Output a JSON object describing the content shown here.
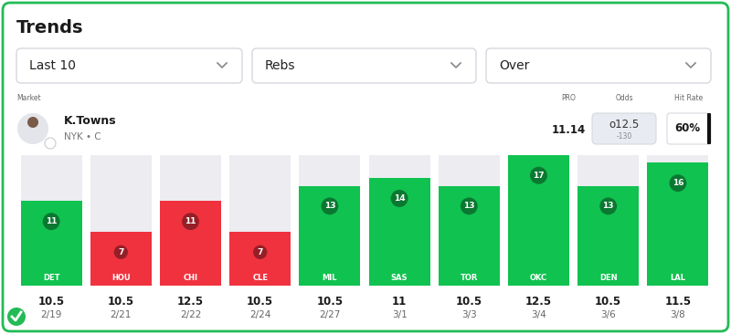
{
  "title": "Trends",
  "filters": [
    "Last 10",
    "Rebs",
    "Over"
  ],
  "columns": {
    "market": "Market",
    "pro": "PRO",
    "odds": "Odds",
    "hit_rate": "Hit Rate"
  },
  "player": {
    "name": "K.Towns",
    "info": "NYK • C",
    "pro": 11.14,
    "odds_line": "o12.5",
    "odds_price": "-130",
    "hit_rate": "60%"
  },
  "chart_data": {
    "type": "bar",
    "categories": [
      "DET",
      "HOU",
      "CHI",
      "CLE",
      "MIL",
      "SAS",
      "TOR",
      "OKC",
      "DEN",
      "LAL"
    ],
    "values": [
      11,
      7,
      11,
      7,
      13,
      14,
      13,
      17,
      13,
      16
    ],
    "lines": [
      10.5,
      10.5,
      12.5,
      10.5,
      10.5,
      11,
      10.5,
      12.5,
      10.5,
      11.5
    ],
    "dates": [
      "2/19",
      "2/21",
      "2/22",
      "2/24",
      "2/27",
      "3/1",
      "3/3",
      "3/4",
      "3/6",
      "3/8"
    ],
    "colors": [
      "#10c24f",
      "#f0323f",
      "#f0323f",
      "#f0323f",
      "#10c24f",
      "#10c24f",
      "#10c24f",
      "#10c24f",
      "#10c24f",
      "#10c24f"
    ],
    "ylim": [
      0,
      17
    ],
    "yticks": [],
    "data_labels": true,
    "tick_labels": false
  }
}
